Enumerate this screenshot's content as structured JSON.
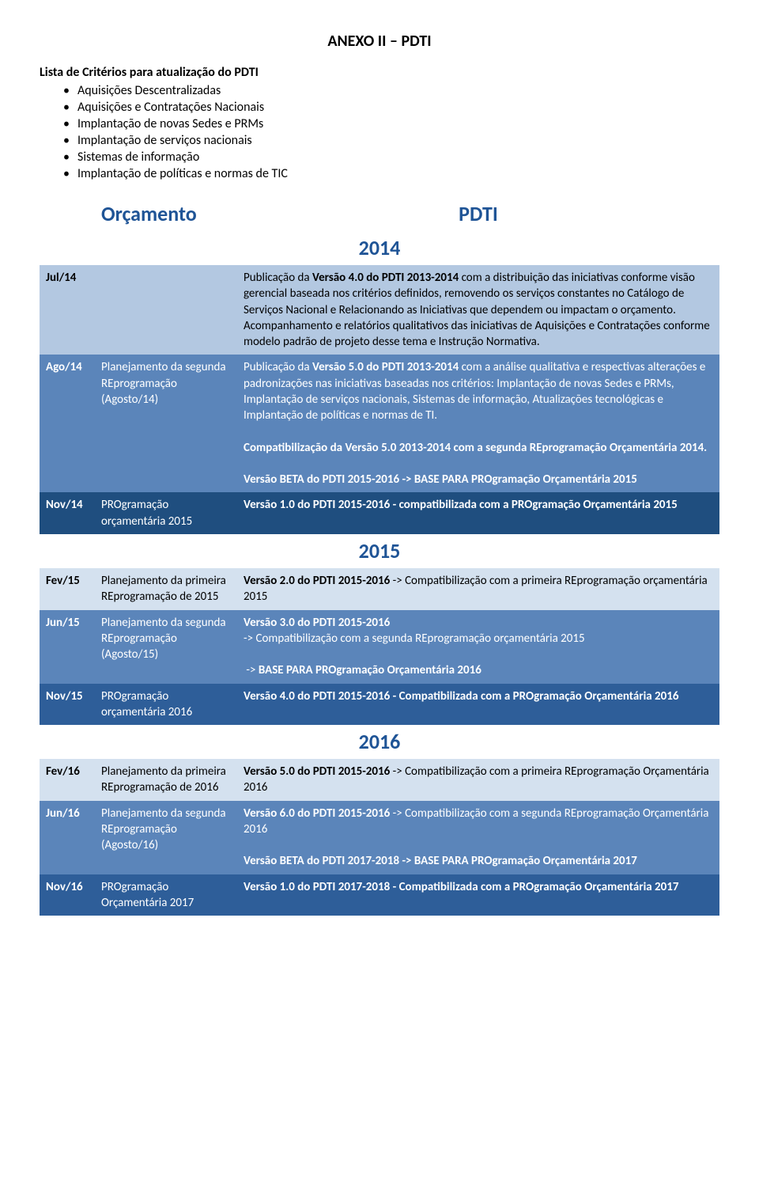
{
  "page_title": "ANEXO II – PDTI",
  "intro_title": "Lista de Critérios para atualização do PDTI",
  "bullets": [
    "Aquisições Descentralizadas",
    "Aquisições e Contratações Nacionais",
    "Implantação de novas Sedes e PRMs",
    "Implantação de serviços nacionais",
    "Sistemas de informação",
    "Implantação de políticas e normas de TIC"
  ],
  "header_left": "Orçamento",
  "header_right": "PDTI",
  "year_2014": "2014",
  "jul14": {
    "d": "Jul/14",
    "l": "",
    "r": "Publicação da <b>Versão 4.0 do PDTI 2013-2014</b> com a distribuição das iniciativas conforme visão gerencial baseada nos critérios definidos,  removendo os serviços constantes no Catálogo de Serviços Nacional e Relacionando as Iniciativas que dependem ou impactam o orçamento. Acompanhamento e relatórios qualitativos das iniciativas de Aquisições e Contratações conforme modelo padrão de projeto desse tema e Instrução Normativa."
  },
  "ago14": {
    "d": "Ago/14",
    "l": "Planejamento da segunda REprogramação (Agosto/14)",
    "r": "Publicação da <b>Versão 5.0 do PDTI 2013-2014</b> com a análise qualitativa e respectivas alterações e padronizações nas iniciativas baseadas nos critérios: Implantação de novas Sedes e PRMs, Implantação de serviços nacionais, Sistemas de informação, Atualizações tecnológicas e Implantação de políticas e normas de TI.<br><br><b>Compatibilização da Versão 5.0 2013-2014  com a segunda REprogramação Orçamentária 2014.</b><br><br><b>Versão BETA do PDTI 2015-2016 ->   BASE PARA PROgramação Orçamentária 2015</b>"
  },
  "nov14": {
    "d": "Nov/14",
    "l": "PROgramação orçamentária 2015",
    "r": "<b>Versão 1.0 do PDTI 2015-2016 - compatibilizada com a PROgramação Orçamentária 2015</b>"
  },
  "year_2015": "2015",
  "fev15": {
    "d": "Fev/15",
    "l": "Planejamento da primeira REprogramação de 2015",
    "r": "<b>Versão 2.0 do PDTI 2015-2016</b> -> Compatibilização com a primeira REprogramação orçamentária 2015"
  },
  "jun15": {
    "d": "Jun/15",
    "l": "Planejamento da segunda REprogramação (Agosto/15)",
    "r": "<b>Versão 3.0 do PDTI 2015-2016</b><br>-> Compatibilização com a segunda REprogramação orçamentária 2015<br><br>&nbsp;-> <b>BASE PARA PROgramação Orçamentária 2016</b>"
  },
  "nov15": {
    "d": "Nov/15",
    "l": "PROgramação orçamentária 2016",
    "r": "<b>Versão 4.0 do PDTI 2015-2016  - Compatibilizada com a PROgramação Orçamentária 2016</b>"
  },
  "year_2016": "2016",
  "fev16": {
    "d": "Fev/16",
    "l": "Planejamento da primeira REprogramação de 2016",
    "r": "<b>Versão 5.0 do PDTI 2015-2016</b> ->  Compatibilização com a primeira REprogramação Orçamentária 2016"
  },
  "jun16": {
    "d": "Jun/16",
    "l": "Planejamento da segunda REprogramação (Agosto/16)",
    "r": "<b>Versão 6.0 do PDTI 2015-2016</b> -> Compatibilização com a segunda REprogramação Orçamentária 2016<br><br><b>Versão BETA do PDTI 2017-2018 -> BASE PARA PROgramação Orçamentária 2017</b>"
  },
  "nov16": {
    "d": "Nov/16",
    "l": "PROgramação Orçamentária 2017",
    "r": "<b>Versão 1.0 do PDTI 2017-2018 - Compatibilizada com a PROgramação Orçamentária 2017</b>"
  },
  "colors": {
    "light": "#d4e1ef",
    "mid": "#b3c8e1",
    "dark": "#5b85ba",
    "darker": "#2e5e99",
    "deep": "#1f4e7f"
  }
}
